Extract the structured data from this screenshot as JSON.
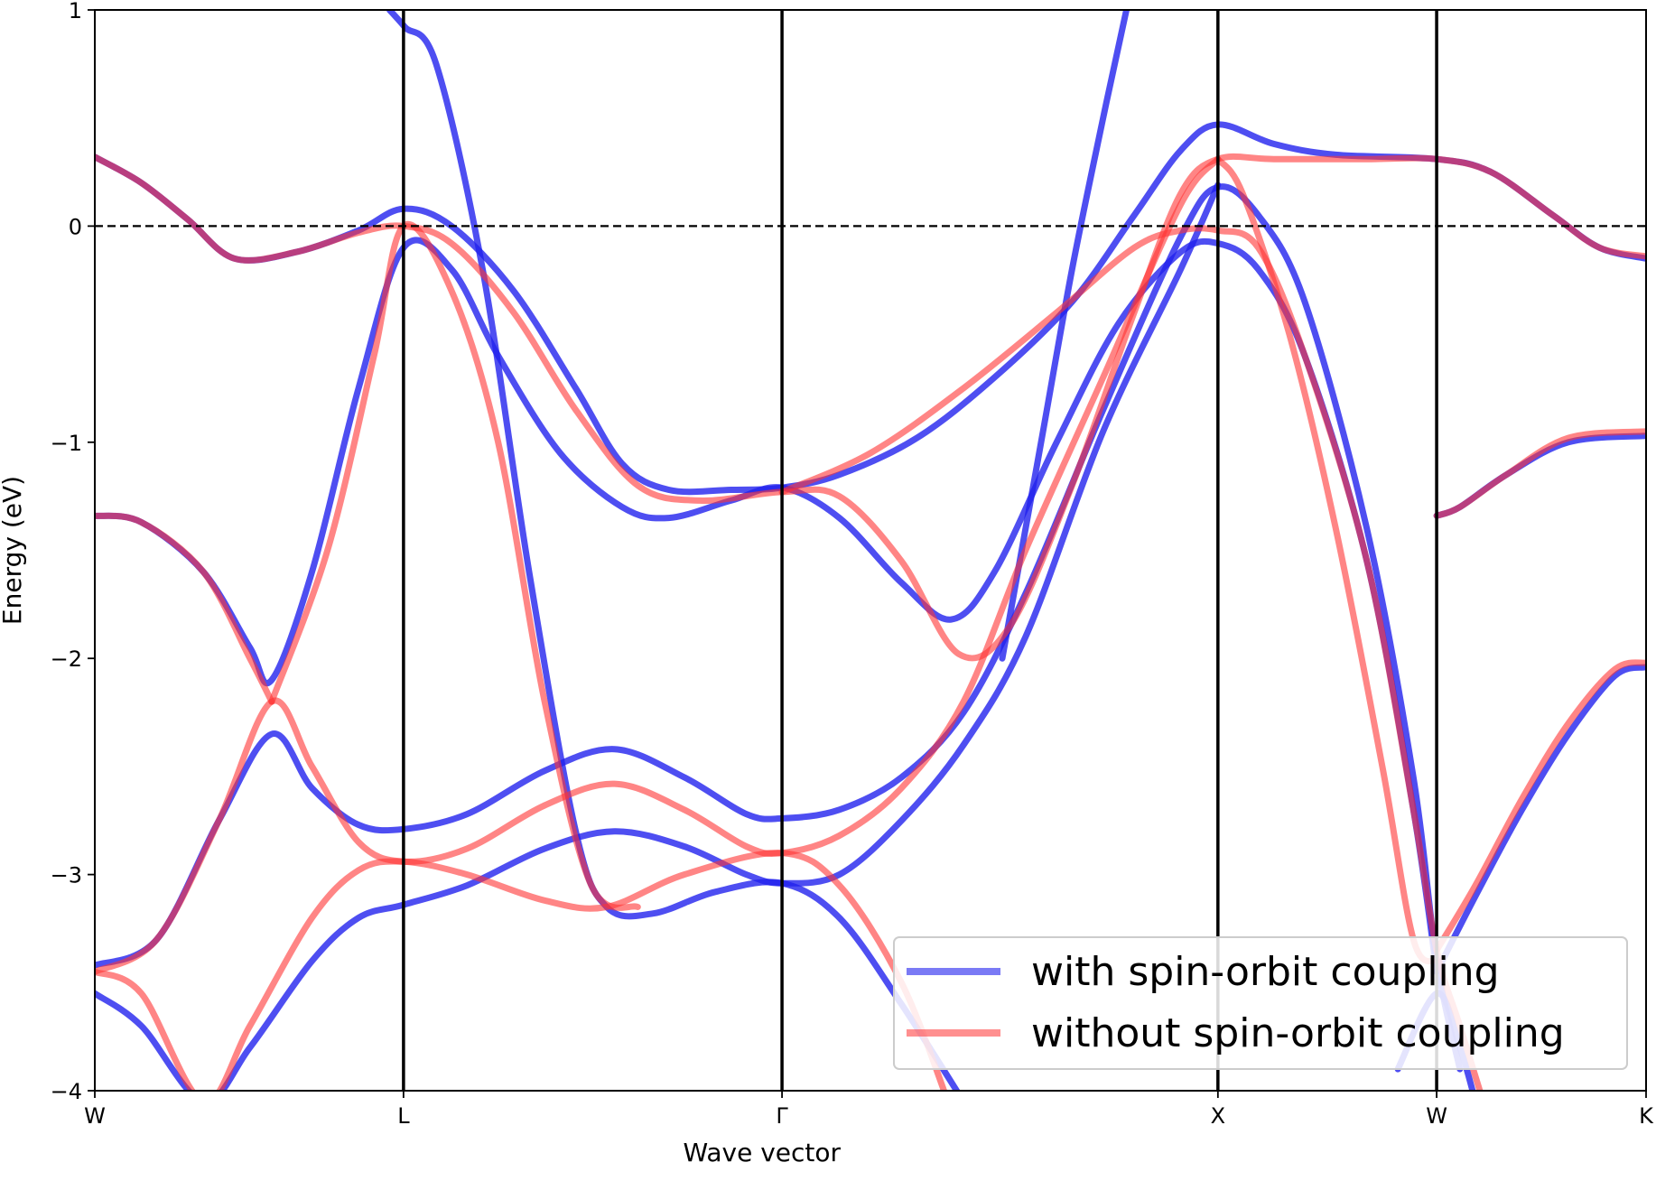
{
  "chart_data": {
    "type": "line",
    "title": "",
    "xlabel": "Wave vector",
    "ylabel": "Energy (eV)",
    "ylim": [
      -4,
      1
    ],
    "xlim": [
      0,
      1
    ],
    "y_ticks": [
      1,
      0,
      -1,
      -2,
      -3,
      -4
    ],
    "y_tick_labels": [
      "1",
      "0",
      "−1",
      "−2",
      "−3",
      "−4"
    ],
    "high_symmetry_points": [
      {
        "label": "W",
        "x": 0.0
      },
      {
        "label": "L",
        "x": 0.199
      },
      {
        "label": "Γ",
        "x": 0.443
      },
      {
        "label": "X",
        "x": 0.724
      },
      {
        "label": "W",
        "x": 0.865
      },
      {
        "label": "K",
        "x": 1.0
      }
    ],
    "fermi_level": 0,
    "grid": false,
    "legend_position": "bottom-right",
    "series": [
      {
        "name": "with spin-orbit coupling",
        "color": "#2222ee",
        "bands": [
          [
            [
              0,
              0.32
            ],
            [
              0.03,
              0.2
            ],
            [
              0.06,
              0.03
            ],
            [
              0.09,
              -0.15
            ],
            [
              0.13,
              -0.12
            ],
            [
              0.17,
              -0.02
            ],
            [
              0.199,
              0.08
            ],
            [
              0.23,
              0.0
            ],
            [
              0.27,
              -0.3
            ],
            [
              0.31,
              -0.75
            ],
            [
              0.34,
              -1.1
            ],
            [
              0.37,
              -1.22
            ],
            [
              0.41,
              -1.22
            ],
            [
              0.443,
              -1.21
            ],
            [
              0.48,
              -1.15
            ],
            [
              0.53,
              -0.98
            ],
            [
              0.58,
              -0.7
            ],
            [
              0.63,
              -0.35
            ],
            [
              0.67,
              0.05
            ],
            [
              0.7,
              0.35
            ],
            [
              0.724,
              0.47
            ],
            [
              0.76,
              0.38
            ],
            [
              0.8,
              0.33
            ],
            [
              0.865,
              0.31
            ],
            [
              0.9,
              0.25
            ],
            [
              0.94,
              0.05
            ],
            [
              0.97,
              -0.1
            ],
            [
              1.0,
              -0.15
            ]
          ],
          [
            [
              0,
              -1.34
            ],
            [
              0.03,
              -1.37
            ],
            [
              0.07,
              -1.6
            ],
            [
              0.1,
              -1.95
            ],
            [
              0.114,
              -2.1
            ],
            [
              0.14,
              -1.6
            ],
            [
              0.17,
              -0.75
            ],
            [
              0.199,
              -0.1
            ],
            [
              0.23,
              -0.2
            ],
            [
              0.26,
              -0.6
            ],
            [
              0.3,
              -1.05
            ],
            [
              0.34,
              -1.3
            ],
            [
              0.37,
              -1.35
            ],
            [
              0.41,
              -1.27
            ],
            [
              0.443,
              -1.21
            ],
            [
              0.48,
              -1.35
            ],
            [
              0.52,
              -1.65
            ],
            [
              0.552,
              -1.82
            ],
            [
              0.58,
              -1.6
            ],
            [
              0.62,
              -1.0
            ],
            [
              0.66,
              -0.45
            ],
            [
              0.7,
              -0.12
            ],
            [
              0.724,
              -0.08
            ],
            [
              0.75,
              -0.2
            ],
            [
              0.78,
              -0.6
            ],
            [
              0.82,
              -1.55
            ],
            [
              0.85,
              -2.7
            ],
            [
              0.865,
              -3.45
            ]
          ],
          [
            [
              0,
              -3.42
            ],
            [
              0.04,
              -3.3
            ],
            [
              0.08,
              -2.75
            ],
            [
              0.114,
              -2.35
            ],
            [
              0.14,
              -2.6
            ],
            [
              0.17,
              -2.77
            ],
            [
              0.199,
              -2.79
            ],
            [
              0.24,
              -2.72
            ],
            [
              0.29,
              -2.52
            ],
            [
              0.335,
              -2.42
            ],
            [
              0.38,
              -2.55
            ],
            [
              0.42,
              -2.72
            ],
            [
              0.443,
              -2.74
            ],
            [
              0.48,
              -2.7
            ],
            [
              0.52,
              -2.55
            ],
            [
              0.56,
              -2.25
            ],
            [
              0.6,
              -1.7
            ],
            [
              0.65,
              -0.85
            ],
            [
              0.7,
              -0.05
            ],
            [
              0.724,
              0.18
            ],
            [
              0.75,
              0.05
            ],
            [
              0.78,
              -0.35
            ],
            [
              0.82,
              -1.4
            ],
            [
              0.85,
              -2.55
            ],
            [
              0.865,
              -3.4
            ],
            [
              0.88,
              -3.9
            ]
          ],
          [
            [
              0,
              -3.55
            ],
            [
              0.03,
              -3.7
            ],
            [
              0.07,
              -4.05
            ],
            [
              0.1,
              -3.8
            ],
            [
              0.14,
              -3.4
            ],
            [
              0.17,
              -3.2
            ],
            [
              0.199,
              -3.14
            ],
            [
              0.24,
              -3.05
            ],
            [
              0.29,
              -2.88
            ],
            [
              0.335,
              -2.8
            ],
            [
              0.38,
              -2.87
            ],
            [
              0.42,
              -3.0
            ],
            [
              0.443,
              -3.04
            ],
            [
              0.48,
              -3.0
            ],
            [
              0.52,
              -2.75
            ],
            [
              0.56,
              -2.4
            ],
            [
              0.6,
              -1.9
            ],
            [
              0.65,
              -0.95
            ],
            [
              0.7,
              -0.2
            ],
            [
              0.724,
              0.19
            ]
          ],
          [
            [
              0.19,
              1.0
            ],
            [
              0.2,
              0.92
            ],
            [
              0.22,
              0.75
            ],
            [
              0.25,
              -0.2
            ],
            [
              0.28,
              -1.6
            ],
            [
              0.31,
              -2.8
            ],
            [
              0.33,
              -3.15
            ],
            [
              0.36,
              -3.18
            ],
            [
              0.4,
              -3.08
            ],
            [
              0.443,
              -3.04
            ],
            [
              0.48,
              -3.2
            ],
            [
              0.52,
              -3.6
            ],
            [
              0.56,
              -4.05
            ]
          ],
          [
            [
              0.585,
              -2.0
            ],
            [
              0.61,
              -1.0
            ],
            [
              0.63,
              -0.2
            ],
            [
              0.65,
              0.5
            ],
            [
              0.665,
              1.0
            ]
          ],
          [
            [
              0.865,
              -1.34
            ],
            [
              0.88,
              -1.3
            ],
            [
              0.91,
              -1.15
            ],
            [
              0.95,
              -1.0
            ],
            [
              1.0,
              -0.97
            ]
          ],
          [
            [
              0.865,
              -3.45
            ],
            [
              0.89,
              -3.1
            ],
            [
              0.92,
              -2.7
            ],
            [
              0.95,
              -2.35
            ],
            [
              0.98,
              -2.08
            ],
            [
              1.0,
              -2.04
            ]
          ],
          [
            [
              0.84,
              -3.9
            ],
            [
              0.865,
              -3.55
            ],
            [
              0.88,
              -3.8
            ],
            [
              0.89,
              -4.05
            ]
          ]
        ]
      },
      {
        "name": "without spin-orbit coupling",
        "color": "#ff3333",
        "bands": [
          [
            [
              0,
              0.32
            ],
            [
              0.03,
              0.2
            ],
            [
              0.06,
              0.03
            ],
            [
              0.09,
              -0.15
            ],
            [
              0.13,
              -0.12
            ],
            [
              0.17,
              -0.03
            ],
            [
              0.199,
              0.0
            ],
            [
              0.23,
              -0.08
            ],
            [
              0.27,
              -0.4
            ],
            [
              0.31,
              -0.85
            ],
            [
              0.35,
              -1.2
            ],
            [
              0.39,
              -1.27
            ],
            [
              0.443,
              -1.23
            ],
            [
              0.48,
              -1.25
            ],
            [
              0.52,
              -1.55
            ],
            [
              0.557,
              -1.98
            ],
            [
              0.59,
              -1.85
            ],
            [
              0.63,
              -1.2
            ],
            [
              0.67,
              -0.4
            ],
            [
              0.7,
              0.15
            ],
            [
              0.724,
              0.31
            ],
            [
              0.76,
              0.31
            ],
            [
              0.82,
              0.31
            ],
            [
              0.865,
              0.31
            ],
            [
              0.9,
              0.25
            ],
            [
              0.94,
              0.05
            ],
            [
              0.97,
              -0.1
            ],
            [
              1.0,
              -0.14
            ]
          ],
          [
            [
              0,
              -3.45
            ],
            [
              0.04,
              -3.3
            ],
            [
              0.08,
              -2.75
            ],
            [
              0.114,
              -2.2
            ],
            [
              0.14,
              -2.5
            ],
            [
              0.17,
              -2.85
            ],
            [
              0.199,
              -2.94
            ],
            [
              0.24,
              -2.88
            ],
            [
              0.29,
              -2.68
            ],
            [
              0.335,
              -2.58
            ],
            [
              0.38,
              -2.7
            ],
            [
              0.42,
              -2.87
            ],
            [
              0.443,
              -2.9
            ],
            [
              0.48,
              -2.82
            ],
            [
              0.52,
              -2.6
            ],
            [
              0.56,
              -2.2
            ],
            [
              0.6,
              -1.5
            ],
            [
              0.65,
              -0.7
            ],
            [
              0.7,
              0.1
            ],
            [
              0.724,
              0.31
            ]
          ],
          [
            [
              0,
              -3.45
            ],
            [
              0.03,
              -3.55
            ],
            [
              0.07,
              -4.05
            ],
            [
              0.1,
              -3.7
            ],
            [
              0.14,
              -3.2
            ],
            [
              0.17,
              -2.98
            ],
            [
              0.199,
              -2.94
            ],
            [
              0.24,
              -3.0
            ],
            [
              0.29,
              -3.12
            ],
            [
              0.33,
              -3.15
            ],
            [
              0.38,
              -3.0
            ],
            [
              0.443,
              -2.9
            ],
            [
              0.48,
              -3.05
            ],
            [
              0.52,
              -3.5
            ],
            [
              0.55,
              -4.05
            ]
          ],
          [
            [
              0.114,
              -2.2
            ],
            [
              0.15,
              -1.5
            ],
            [
              0.18,
              -0.6
            ],
            [
              0.199,
              0.0
            ],
            [
              0.23,
              -0.3
            ],
            [
              0.26,
              -1.0
            ],
            [
              0.29,
              -2.2
            ],
            [
              0.32,
              -3.05
            ],
            [
              0.35,
              -3.15
            ]
          ],
          [
            [
              0.443,
              -1.23
            ],
            [
              0.5,
              -1.05
            ],
            [
              0.56,
              -0.75
            ],
            [
              0.62,
              -0.4
            ],
            [
              0.67,
              -0.1
            ],
            [
              0.7,
              -0.02
            ],
            [
              0.724,
              -0.02
            ],
            [
              0.75,
              -0.1
            ],
            [
              0.78,
              -0.6
            ],
            [
              0.82,
              -1.55
            ],
            [
              0.85,
              -2.7
            ],
            [
              0.865,
              -3.35
            ],
            [
              0.88,
              -3.7
            ],
            [
              0.895,
              -4.05
            ]
          ],
          [
            [
              0.0,
              -1.34
            ],
            [
              0.03,
              -1.37
            ],
            [
              0.07,
              -1.6
            ],
            [
              0.1,
              -2.0
            ],
            [
              0.114,
              -2.2
            ]
          ],
          [
            [
              0.865,
              -1.34
            ],
            [
              0.88,
              -1.3
            ],
            [
              0.91,
              -1.15
            ],
            [
              0.95,
              -0.98
            ],
            [
              1.0,
              -0.95
            ]
          ],
          [
            [
              0.865,
              -3.35
            ],
            [
              0.89,
              -3.05
            ],
            [
              0.92,
              -2.65
            ],
            [
              0.95,
              -2.3
            ],
            [
              0.98,
              -2.05
            ],
            [
              1.0,
              -2.02
            ]
          ],
          [
            [
              0.724,
              0.31
            ],
            [
              0.74,
              0.15
            ],
            [
              0.77,
              -0.5
            ],
            [
              0.8,
              -1.4
            ],
            [
              0.83,
              -2.5
            ],
            [
              0.85,
              -3.3
            ],
            [
              0.865,
              -3.4
            ]
          ]
        ]
      }
    ]
  }
}
